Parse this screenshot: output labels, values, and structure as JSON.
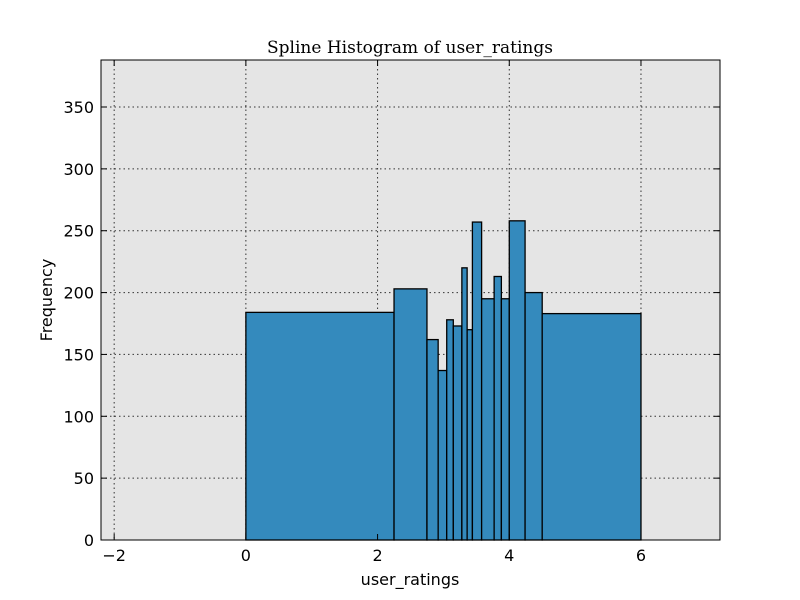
{
  "chart_data": {
    "type": "bar",
    "title": "Spline Histogram of user_ratings",
    "xlabel": "user_ratings",
    "ylabel": "Frequency",
    "xlim": [
      -2.2,
      7.2
    ],
    "ylim": [
      0,
      388
    ],
    "xticks": [
      -2,
      0,
      2,
      4,
      6
    ],
    "yticks": [
      0,
      50,
      100,
      150,
      200,
      250,
      300,
      350
    ],
    "grid": true,
    "background": "#e5e5e5",
    "bar_color": "#348abd",
    "bins": [
      {
        "x0": 0.0,
        "x1": 2.25,
        "value": 184
      },
      {
        "x0": 2.25,
        "x1": 2.75,
        "value": 203
      },
      {
        "x0": 2.75,
        "x1": 2.92,
        "value": 162
      },
      {
        "x0": 2.92,
        "x1": 3.05,
        "value": 137
      },
      {
        "x0": 3.05,
        "x1": 3.15,
        "value": 178
      },
      {
        "x0": 3.15,
        "x1": 3.28,
        "value": 173
      },
      {
        "x0": 3.28,
        "x1": 3.36,
        "value": 220
      },
      {
        "x0": 3.36,
        "x1": 3.44,
        "value": 170
      },
      {
        "x0": 3.44,
        "x1": 3.58,
        "value": 257
      },
      {
        "x0": 3.58,
        "x1": 3.77,
        "value": 195
      },
      {
        "x0": 3.77,
        "x1": 3.88,
        "value": 213
      },
      {
        "x0": 3.88,
        "x1": 4.0,
        "value": 195
      },
      {
        "x0": 4.0,
        "x1": 4.24,
        "value": 258
      },
      {
        "x0": 4.24,
        "x1": 4.5,
        "value": 200
      },
      {
        "x0": 4.5,
        "x1": 6.0,
        "value": 183
      }
    ]
  }
}
